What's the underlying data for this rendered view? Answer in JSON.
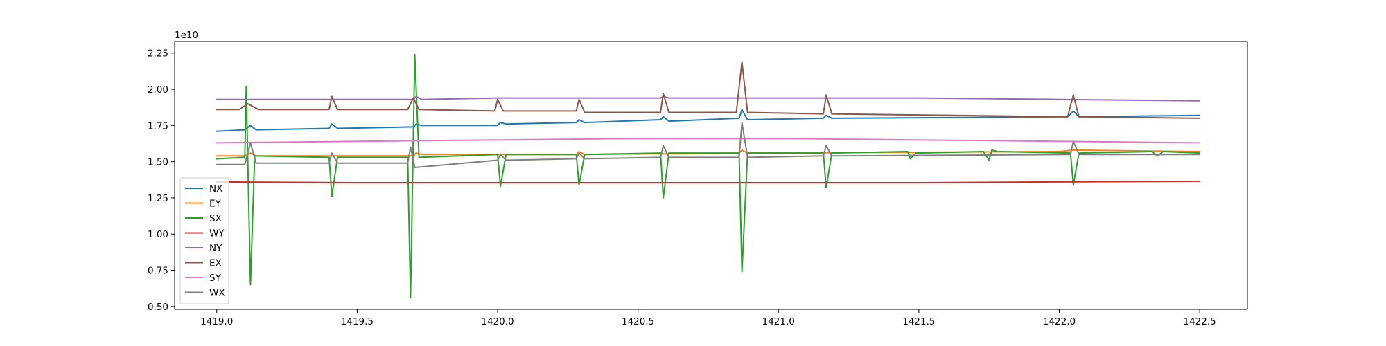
{
  "chart_data": {
    "type": "line",
    "title": "",
    "xlabel": "",
    "ylabel": "",
    "y_offset_text": "1e10",
    "xlim": [
      1418.85,
      1422.67
    ],
    "ylim": [
      4800000000.0,
      23300000000.0
    ],
    "x_ticks": [
      1419.0,
      1419.5,
      1420.0,
      1420.5,
      1421.0,
      1421.5,
      1422.0,
      1422.5
    ],
    "x_tick_labels": [
      "1419.0",
      "1419.5",
      "1420.0",
      "1420.5",
      "1421.0",
      "1421.5",
      "1422.0",
      "1422.5"
    ],
    "y_ticks": [
      5000000000.0,
      7500000000.0,
      10000000000.0,
      12500000000.0,
      15000000000.0,
      17500000000.0,
      20000000000.0,
      22500000000.0
    ],
    "y_tick_labels": [
      "0.50",
      "0.75",
      "1.00",
      "1.25",
      "1.50",
      "1.75",
      "2.00",
      "2.25"
    ],
    "grid": false,
    "legend_position": "lower-left",
    "series": [
      {
        "name": "NX",
        "color": "#1f77b4",
        "x": [
          1419.0,
          1419.1,
          1419.12,
          1419.14,
          1419.4,
          1419.41,
          1419.43,
          1419.7,
          1419.71,
          1419.73,
          1420.0,
          1420.01,
          1420.03,
          1420.28,
          1420.29,
          1420.31,
          1420.58,
          1420.59,
          1420.61,
          1420.86,
          1420.87,
          1420.89,
          1421.16,
          1421.17,
          1421.19,
          1422.03,
          1422.05,
          1422.07,
          1422.5
        ],
        "y": [
          17100000000.0,
          17200000000.0,
          17500000000.0,
          17200000000.0,
          17300000000.0,
          17600000000.0,
          17300000000.0,
          17400000000.0,
          17600000000.0,
          17500000000.0,
          17500000000.0,
          17700000000.0,
          17600000000.0,
          17700000000.0,
          17900000000.0,
          17700000000.0,
          17900000000.0,
          18100000000.0,
          17800000000.0,
          18000000000.0,
          18600000000.0,
          17900000000.0,
          18000000000.0,
          18200000000.0,
          18000000000.0,
          18100000000.0,
          18500000000.0,
          18100000000.0,
          18200000000.0
        ]
      },
      {
        "name": "EY",
        "color": "#ff7f0e",
        "x": [
          1419.0,
          1419.1,
          1419.12,
          1419.14,
          1419.7,
          1419.71,
          1419.73,
          1420.28,
          1420.29,
          1420.31,
          1420.86,
          1420.87,
          1420.89,
          1422.0,
          1422.05,
          1422.5
        ],
        "y": [
          15400000000.0,
          15400000000.0,
          15600000000.0,
          15400000000.0,
          15400000000.0,
          15600000000.0,
          15500000000.0,
          15500000000.0,
          15700000000.0,
          15500000000.0,
          15600000000.0,
          15800000000.0,
          15600000000.0,
          15700000000.0,
          15800000000.0,
          15700000000.0
        ]
      },
      {
        "name": "SX",
        "color": "#2ca02c",
        "x": [
          1419.0,
          1419.1,
          1419.105,
          1419.12,
          1419.135,
          1419.4,
          1419.41,
          1419.43,
          1419.68,
          1419.69,
          1419.705,
          1419.72,
          1420.0,
          1420.01,
          1420.03,
          1420.28,
          1420.29,
          1420.31,
          1420.58,
          1420.59,
          1420.61,
          1420.86,
          1420.87,
          1420.89,
          1421.16,
          1421.17,
          1421.19,
          1421.46,
          1421.47,
          1421.49,
          1421.73,
          1421.75,
          1421.76,
          1421.78,
          1422.04,
          1422.05,
          1422.07,
          1422.33,
          1422.35,
          1422.37,
          1422.5
        ],
        "y": [
          15200000000.0,
          15300000000.0,
          20200000000.0,
          6500000000.0,
          15400000000.0,
          15300000000.0,
          12600000000.0,
          15300000000.0,
          15300000000.0,
          5600000000.0,
          22400000000.0,
          15300000000.0,
          15500000000.0,
          13300000000.0,
          15500000000.0,
          15500000000.0,
          13400000000.0,
          15500000000.0,
          15600000000.0,
          12500000000.0,
          15600000000.0,
          15600000000.0,
          7400000000.0,
          15600000000.0,
          15600000000.0,
          13200000000.0,
          15600000000.0,
          15700000000.0,
          15200000000.0,
          15600000000.0,
          15700000000.0,
          15100000000.0,
          15800000000.0,
          15700000000.0,
          15600000000.0,
          13400000000.0,
          15600000000.0,
          15700000000.0,
          15400000000.0,
          15700000000.0,
          15600000000.0
        ]
      },
      {
        "name": "WY",
        "color": "#d62728",
        "x": [
          1419.0,
          1419.5,
          1420.0,
          1420.5,
          1421.0,
          1421.5,
          1422.0,
          1422.5
        ],
        "y": [
          13600000000.0,
          13550000000.0,
          13550000000.0,
          13550000000.0,
          13550000000.0,
          13550000000.0,
          13600000000.0,
          13650000000.0
        ]
      },
      {
        "name": "NY",
        "color": "#9467bd",
        "x": [
          1419.0,
          1419.5,
          1419.7,
          1419.71,
          1419.73,
          1420.0,
          1420.58,
          1420.59,
          1420.61,
          1421.0,
          1421.5,
          1422.0,
          1422.5
        ],
        "y": [
          19300000000.0,
          19300000000.0,
          19300000000.0,
          19500000000.0,
          19300000000.0,
          19400000000.0,
          19400000000.0,
          19500000000.0,
          19400000000.0,
          19400000000.0,
          19400000000.0,
          19300000000.0,
          19200000000.0
        ]
      },
      {
        "name": "EX",
        "color": "#8c564b",
        "x": [
          1419.0,
          1419.08,
          1419.11,
          1419.13,
          1419.15,
          1419.4,
          1419.41,
          1419.43,
          1419.68,
          1419.7,
          1419.72,
          1419.99,
          1420.0,
          1420.02,
          1420.28,
          1420.29,
          1420.31,
          1420.58,
          1420.59,
          1420.61,
          1420.85,
          1420.87,
          1420.89,
          1421.16,
          1421.17,
          1421.19,
          1422.03,
          1422.05,
          1422.07,
          1422.5
        ],
        "y": [
          18600000000.0,
          18600000000.0,
          19000000000.0,
          18800000000.0,
          18600000000.0,
          18600000000.0,
          19500000000.0,
          18600000000.0,
          18600000000.0,
          19400000000.0,
          18600000000.0,
          18500000000.0,
          19300000000.0,
          18500000000.0,
          18500000000.0,
          19300000000.0,
          18400000000.0,
          18400000000.0,
          19700000000.0,
          18400000000.0,
          18400000000.0,
          21900000000.0,
          18400000000.0,
          18300000000.0,
          19600000000.0,
          18300000000.0,
          18100000000.0,
          19600000000.0,
          18100000000.0,
          18000000000.0
        ]
      },
      {
        "name": "SY",
        "color": "#e377c2",
        "x": [
          1419.0,
          1419.5,
          1420.0,
          1420.5,
          1421.0,
          1421.5,
          1422.0,
          1422.5
        ],
        "y": [
          16300000000.0,
          16400000000.0,
          16500000000.0,
          16600000000.0,
          16600000000.0,
          16500000000.0,
          16400000000.0,
          16300000000.0
        ]
      },
      {
        "name": "WX",
        "color": "#7f7f7f",
        "x": [
          1419.0,
          1419.1,
          1419.12,
          1419.14,
          1419.4,
          1419.41,
          1419.43,
          1419.68,
          1419.69,
          1419.705,
          1420.0,
          1420.01,
          1420.03,
          1420.28,
          1420.29,
          1420.31,
          1420.58,
          1420.59,
          1420.61,
          1420.86,
          1420.87,
          1420.89,
          1421.16,
          1421.17,
          1421.19,
          1422.04,
          1422.05,
          1422.07,
          1422.5
        ],
        "y": [
          14800000000.0,
          14800000000.0,
          16300000000.0,
          14900000000.0,
          14900000000.0,
          15600000000.0,
          14900000000.0,
          14900000000.0,
          16000000000.0,
          14600000000.0,
          15100000000.0,
          15500000000.0,
          15100000000.0,
          15200000000.0,
          15600000000.0,
          15200000000.0,
          15300000000.0,
          16100000000.0,
          15300000000.0,
          15300000000.0,
          17700000000.0,
          15300000000.0,
          15400000000.0,
          16100000000.0,
          15400000000.0,
          15500000000.0,
          16400000000.0,
          15500000000.0,
          15500000000.0
        ]
      }
    ]
  }
}
